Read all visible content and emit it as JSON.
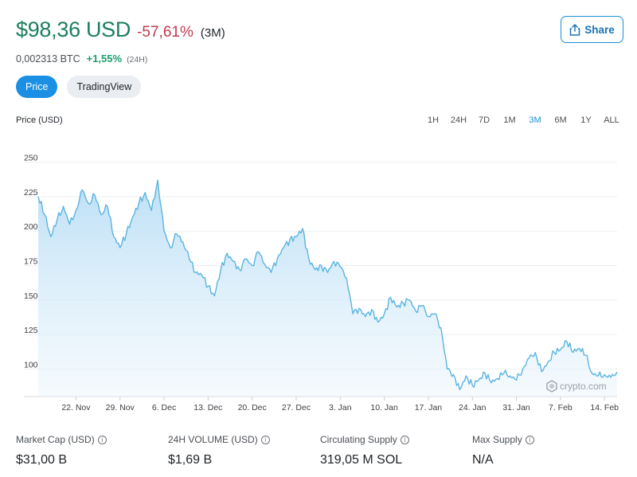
{
  "header": {
    "price": "$98,36 USD",
    "change": "-57,61%",
    "period": "(3M)",
    "btc_value": "0,002313 BTC",
    "btc_change": "+1,55%",
    "btc_period": "(24H)",
    "share_label": "Share",
    "share_icon": "share-icon"
  },
  "tabs": [
    {
      "label": "Price",
      "active": true
    },
    {
      "label": "TradingView",
      "active": false
    }
  ],
  "chart_label": "Price (USD)",
  "ranges": [
    "1H",
    "24H",
    "7D",
    "1M",
    "3M",
    "6M",
    "1Y",
    "ALL"
  ],
  "active_range": "3M",
  "watermark": "crypto.com",
  "chart_data": {
    "type": "area",
    "ylim": [
      80,
      255
    ],
    "yticks": [
      100,
      125,
      150,
      175,
      200,
      225,
      250
    ],
    "xlim": [
      "2022-11-16",
      "2023-02-16"
    ],
    "xticks": [
      {
        "label": "22. Nov",
        "date": "2022-11-22"
      },
      {
        "label": "29. Nov",
        "date": "2022-11-29"
      },
      {
        "label": "6. Dec",
        "date": "2022-12-06"
      },
      {
        "label": "13. Dec",
        "date": "2022-12-13"
      },
      {
        "label": "20. Dec",
        "date": "2022-12-20"
      },
      {
        "label": "27. Dec",
        "date": "2022-12-27"
      },
      {
        "label": "3. Jan",
        "date": "2023-01-03"
      },
      {
        "label": "10. Jan",
        "date": "2023-01-10"
      },
      {
        "label": "17. Jan",
        "date": "2023-01-17"
      },
      {
        "label": "24. Jan",
        "date": "2023-01-24"
      },
      {
        "label": "31. Jan",
        "date": "2023-01-31"
      },
      {
        "label": "7. Feb",
        "date": "2023-02-07"
      },
      {
        "label": "14. Feb",
        "date": "2023-02-14"
      }
    ],
    "series": [
      {
        "color": "#5ab4e0",
        "points": [
          [
            "2022-11-16",
            225
          ],
          [
            "2022-11-17",
            212
          ],
          [
            "2022-11-18",
            196
          ],
          [
            "2022-11-19",
            208
          ],
          [
            "2022-11-20",
            218
          ],
          [
            "2022-11-21",
            205
          ],
          [
            "2022-11-22",
            215
          ],
          [
            "2022-11-23",
            230
          ],
          [
            "2022-11-24",
            220
          ],
          [
            "2022-11-25",
            226
          ],
          [
            "2022-11-26",
            212
          ],
          [
            "2022-11-27",
            218
          ],
          [
            "2022-11-28",
            196
          ],
          [
            "2022-11-29",
            188
          ],
          [
            "2022-11-30",
            198
          ],
          [
            "2022-12-01",
            210
          ],
          [
            "2022-12-02",
            220
          ],
          [
            "2022-12-03",
            228
          ],
          [
            "2022-12-04",
            215
          ],
          [
            "2022-12-05",
            237
          ],
          [
            "2022-12-06",
            200
          ],
          [
            "2022-12-07",
            188
          ],
          [
            "2022-12-08",
            198
          ],
          [
            "2022-12-09",
            192
          ],
          [
            "2022-12-10",
            180
          ],
          [
            "2022-12-11",
            170
          ],
          [
            "2022-12-12",
            168
          ],
          [
            "2022-12-13",
            160
          ],
          [
            "2022-12-14",
            153
          ],
          [
            "2022-12-15",
            172
          ],
          [
            "2022-12-16",
            184
          ],
          [
            "2022-12-17",
            178
          ],
          [
            "2022-12-18",
            172
          ],
          [
            "2022-12-19",
            180
          ],
          [
            "2022-12-20",
            175
          ],
          [
            "2022-12-21",
            185
          ],
          [
            "2022-12-22",
            176
          ],
          [
            "2022-12-23",
            170
          ],
          [
            "2022-12-24",
            180
          ],
          [
            "2022-12-25",
            188
          ],
          [
            "2022-12-26",
            194
          ],
          [
            "2022-12-27",
            196
          ],
          [
            "2022-12-28",
            202
          ],
          [
            "2022-12-29",
            180
          ],
          [
            "2022-12-30",
            172
          ],
          [
            "2022-12-31",
            175
          ],
          [
            "2023-01-01",
            170
          ],
          [
            "2023-01-02",
            178
          ],
          [
            "2023-01-03",
            174
          ],
          [
            "2023-01-04",
            166
          ],
          [
            "2023-01-05",
            140
          ],
          [
            "2023-01-06",
            144
          ],
          [
            "2023-01-07",
            138
          ],
          [
            "2023-01-08",
            143
          ],
          [
            "2023-01-09",
            134
          ],
          [
            "2023-01-10",
            140
          ],
          [
            "2023-01-11",
            152
          ],
          [
            "2023-01-12",
            145
          ],
          [
            "2023-01-13",
            148
          ],
          [
            "2023-01-14",
            150
          ],
          [
            "2023-01-15",
            142
          ],
          [
            "2023-01-16",
            146
          ],
          [
            "2023-01-17",
            138
          ],
          [
            "2023-01-18",
            140
          ],
          [
            "2023-01-19",
            130
          ],
          [
            "2023-01-20",
            100
          ],
          [
            "2023-01-21",
            96
          ],
          [
            "2023-01-22",
            85
          ],
          [
            "2023-01-23",
            95
          ],
          [
            "2023-01-24",
            88
          ],
          [
            "2023-01-25",
            92
          ],
          [
            "2023-01-26",
            97
          ],
          [
            "2023-01-27",
            90
          ],
          [
            "2023-01-28",
            93
          ],
          [
            "2023-01-29",
            97
          ],
          [
            "2023-01-30",
            95
          ],
          [
            "2023-01-31",
            92
          ],
          [
            "2023-02-01",
            100
          ],
          [
            "2023-02-02",
            108
          ],
          [
            "2023-02-03",
            112
          ],
          [
            "2023-02-04",
            98
          ],
          [
            "2023-02-05",
            105
          ],
          [
            "2023-02-06",
            112
          ],
          [
            "2023-02-07",
            114
          ],
          [
            "2023-02-08",
            120
          ],
          [
            "2023-02-09",
            112
          ],
          [
            "2023-02-10",
            115
          ],
          [
            "2023-02-11",
            110
          ],
          [
            "2023-02-12",
            97
          ],
          [
            "2023-02-13",
            95
          ],
          [
            "2023-02-14",
            96
          ],
          [
            "2023-02-15",
            94
          ],
          [
            "2023-02-16",
            98
          ]
        ]
      }
    ]
  },
  "stats": [
    {
      "label": "Market Cap (USD)",
      "value": "$31,00 B"
    },
    {
      "label": "24H VOLUME (USD)",
      "value": "$1,69 B"
    },
    {
      "label": "Circulating Supply",
      "value": "319,05 M SOL"
    },
    {
      "label": "Max Supply",
      "value": "N/A"
    }
  ]
}
